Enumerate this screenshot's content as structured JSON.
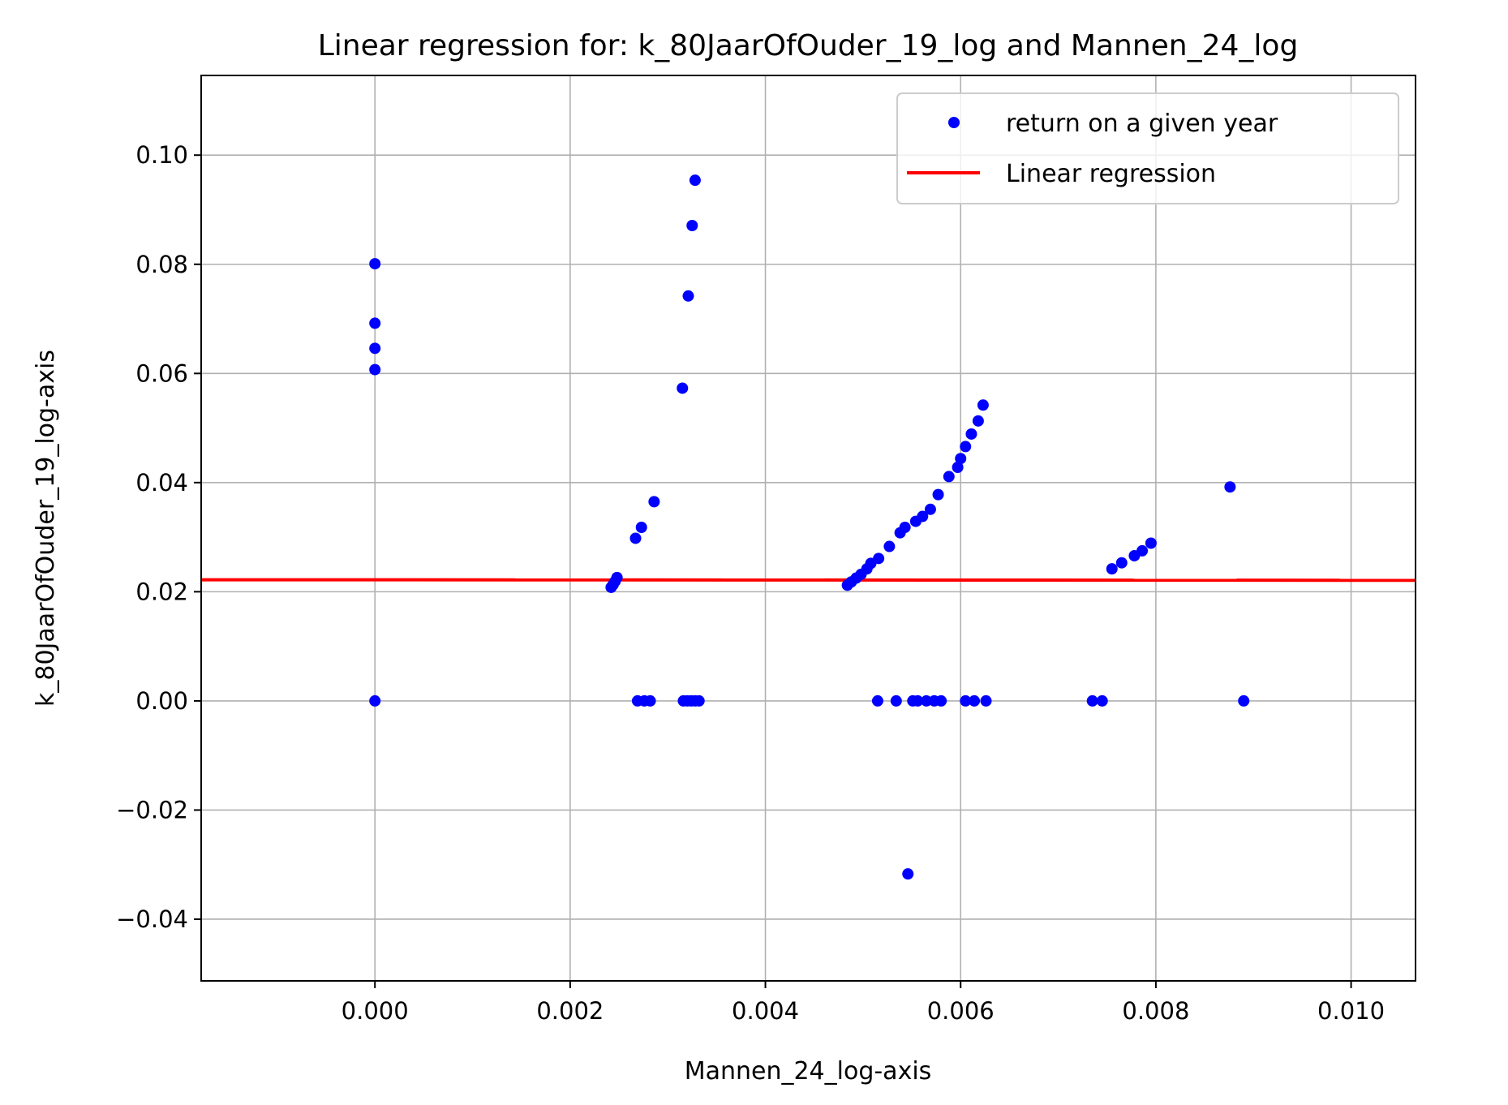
{
  "chart_data": {
    "type": "scatter",
    "title": "Linear regression for: k_80JaarOfOuder_19_log and Mannen_24_log",
    "xlabel": "Mannen_24_log-axis",
    "ylabel": "k_80JaarOfOuder_19_log-axis",
    "xlim": [
      -0.00178,
      0.01066
    ],
    "ylim": [
      -0.0513,
      0.1146
    ],
    "grid": true,
    "legend_position": "top-right",
    "x_ticks": [
      0.0,
      0.002,
      0.004,
      0.006,
      0.008,
      0.01
    ],
    "x_tick_labels": [
      "0.000",
      "0.002",
      "0.004",
      "0.006",
      "0.008",
      "0.010"
    ],
    "y_ticks": [
      -0.04,
      -0.02,
      0.0,
      0.02,
      0.04,
      0.06,
      0.08,
      0.1
    ],
    "y_tick_labels": [
      "−0.04",
      "−0.02",
      "0.00",
      "0.02",
      "0.04",
      "0.06",
      "0.08",
      "0.10"
    ],
    "series": [
      {
        "name": "return on a given year",
        "kind": "scatter",
        "color": "#0000ff",
        "points": [
          [
            0.0,
            0.0801
          ],
          [
            0.0,
            0.0692
          ],
          [
            0.0,
            0.0646
          ],
          [
            0.0,
            0.0607
          ],
          [
            0.0,
            0.0
          ],
          [
            0.00242,
            0.0208
          ],
          [
            0.00244,
            0.0213
          ],
          [
            0.00246,
            0.0219
          ],
          [
            0.00248,
            0.0226
          ],
          [
            0.00267,
            0.0298
          ],
          [
            0.00273,
            0.0318
          ],
          [
            0.00286,
            0.0365
          ],
          [
            0.00269,
            0.0
          ],
          [
            0.00276,
            0.0
          ],
          [
            0.00282,
            0.0
          ],
          [
            0.00315,
            0.0573
          ],
          [
            0.00321,
            0.0742
          ],
          [
            0.00325,
            0.0871
          ],
          [
            0.00328,
            0.0954
          ],
          [
            0.00316,
            0.0
          ],
          [
            0.0032,
            0.0
          ],
          [
            0.00324,
            0.0
          ],
          [
            0.00328,
            0.0
          ],
          [
            0.00332,
            0.0
          ],
          [
            0.00484,
            0.0212
          ],
          [
            0.00488,
            0.0218
          ],
          [
            0.00493,
            0.0225
          ],
          [
            0.00498,
            0.0232
          ],
          [
            0.00504,
            0.0242
          ],
          [
            0.00508,
            0.0252
          ],
          [
            0.00516,
            0.0261
          ],
          [
            0.00527,
            0.0283
          ],
          [
            0.00538,
            0.0308
          ],
          [
            0.00543,
            0.0318
          ],
          [
            0.00554,
            0.0329
          ],
          [
            0.00561,
            0.0338
          ],
          [
            0.00569,
            0.0351
          ],
          [
            0.00577,
            0.0378
          ],
          [
            0.00588,
            0.0411
          ],
          [
            0.00597,
            0.0428
          ],
          [
            0.006,
            0.0444
          ],
          [
            0.00605,
            0.0466
          ],
          [
            0.00611,
            0.0489
          ],
          [
            0.00618,
            0.0513
          ],
          [
            0.00623,
            0.0542
          ],
          [
            0.00515,
            0.0
          ],
          [
            0.00534,
            0.0
          ],
          [
            0.00551,
            0.0
          ],
          [
            0.00556,
            0.0
          ],
          [
            0.00565,
            0.0
          ],
          [
            0.00573,
            0.0
          ],
          [
            0.0058,
            0.0
          ],
          [
            0.00605,
            0.0
          ],
          [
            0.00614,
            0.0
          ],
          [
            0.00626,
            0.0
          ],
          [
            0.00546,
            -0.0317
          ],
          [
            0.00735,
            0.0
          ],
          [
            0.00745,
            0.0
          ],
          [
            0.00755,
            0.0242
          ],
          [
            0.00765,
            0.0253
          ],
          [
            0.00778,
            0.0266
          ],
          [
            0.00786,
            0.0275
          ],
          [
            0.00795,
            0.0289
          ],
          [
            0.00876,
            0.0392
          ],
          [
            0.0089,
            0.0
          ]
        ]
      },
      {
        "name": "Linear regression",
        "kind": "line",
        "color": "#ff0000",
        "points": [
          [
            -0.00178,
            0.0222
          ],
          [
            0.01066,
            0.0221
          ]
        ]
      }
    ]
  }
}
